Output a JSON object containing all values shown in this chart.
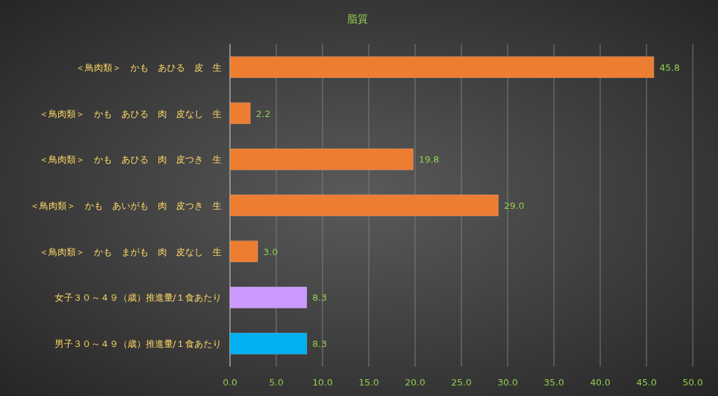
{
  "chart_data": {
    "type": "bar",
    "orientation": "horizontal",
    "title": "脂質",
    "categories": [
      "＜鳥肉類＞　かも　あひる　皮　生",
      "＜鳥肉類＞　かも　あひる　肉　皮なし　生",
      "＜鳥肉類＞　かも　あひる　肉　皮つき　生",
      "＜鳥肉類＞　かも　あいがも　肉　皮つき　生",
      "＜鳥肉類＞　かも　まがも　肉　皮なし　生",
      "女子３０～４９（歳）推進量/１食あたり",
      "男子３０～４９（歳）推進量/１食あたり"
    ],
    "values": [
      45.8,
      2.2,
      19.8,
      29.0,
      3.0,
      8.3,
      8.3
    ],
    "colors": [
      "#ed7d31",
      "#ed7d31",
      "#ed7d31",
      "#ed7d31",
      "#ed7d31",
      "#cc99ff",
      "#00b0f0"
    ],
    "value_labels": [
      "45.8",
      "2.2",
      "19.8",
      "29.0",
      "3.0",
      "8.3",
      "8.3"
    ],
    "xlim": [
      0,
      50
    ],
    "xticks": [
      {
        "value": 0,
        "label": "0.0"
      },
      {
        "value": 5,
        "label": "5.0"
      },
      {
        "value": 10,
        "label": "10.0"
      },
      {
        "value": 15,
        "label": "15.0"
      },
      {
        "value": 20,
        "label": "20.0"
      },
      {
        "value": 25,
        "label": "25.0"
      },
      {
        "value": 30,
        "label": "30.0"
      },
      {
        "value": 35,
        "label": "35.0"
      },
      {
        "value": 40,
        "label": "40.0"
      },
      {
        "value": 45,
        "label": "45.0"
      },
      {
        "value": 50,
        "label": "50.0"
      }
    ],
    "grid": "x"
  }
}
